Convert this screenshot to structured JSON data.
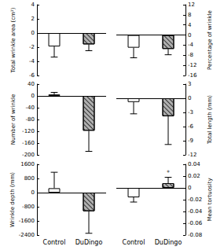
{
  "chart_data": [
    {
      "type": "bar",
      "y_label": "Total wrinkle area (cm²)",
      "categories": [
        "Control",
        "DuDingo"
      ],
      "values": [
        -1.9,
        -1.6
      ],
      "errors": [
        1.5,
        0.9
      ],
      "colors": [
        "#ffffff",
        "#b0b0b0"
      ],
      "ylim": [
        -6,
        4
      ],
      "yticks": [
        -6,
        -4,
        -2,
        0,
        2,
        4
      ],
      "tick_labels": "y"
    },
    {
      "type": "bar",
      "y_label": "Percentage of wrinkle",
      "categories": [
        "Control",
        "DuDingo"
      ],
      "values": [
        -5.0,
        -5.5
      ],
      "errors": [
        4.0,
        2.3
      ],
      "colors": [
        "#ffffff",
        "#b0b0b0"
      ],
      "ylim": [
        -16,
        12
      ],
      "yticks": [
        -16,
        -12,
        -8,
        -4,
        0,
        4,
        8,
        12
      ],
      "tick_labels": "y"
    },
    {
      "type": "bar",
      "y_label": "Number of wrinkle",
      "categories": [
        "Control",
        "DuDingo"
      ],
      "values": [
        5,
        -118
      ],
      "errors": [
        7,
        70
      ],
      "colors": [
        "#ffffff",
        "#b0b0b0"
      ],
      "ylim": [
        -200,
        40
      ],
      "yticks": [
        -200,
        -160,
        -120,
        -80,
        -40,
        0,
        40
      ],
      "tick_labels": "y"
    },
    {
      "type": "bar",
      "y_label": "Total length (mm)",
      "categories": [
        "Control",
        "DuDingo"
      ],
      "values": [
        -0.8,
        -3.8
      ],
      "errors": [
        2.5,
        6.0
      ],
      "colors": [
        "#ffffff",
        "#b0b0b0"
      ],
      "ylim": [
        -12,
        3
      ],
      "yticks": [
        -12,
        -9,
        -6,
        -3,
        0,
        3
      ],
      "tick_labels": "y"
    },
    {
      "type": "bar",
      "y_label": "Wrinkle depth (mm)",
      "categories": [
        "Control",
        "DuDingo"
      ],
      "values": [
        250,
        -1050
      ],
      "errors": [
        900,
        1250
      ],
      "colors": [
        "#ffffff",
        "#b0b0b0"
      ],
      "ylim": [
        -2400,
        1600
      ],
      "yticks": [
        -2400,
        -1600,
        -800,
        0,
        800,
        1600
      ]
    },
    {
      "type": "bar",
      "y_label": "Mean tortuosity",
      "categories": [
        "Control",
        "DuDingo"
      ],
      "values": [
        -0.016,
        0.008
      ],
      "errors": [
        0.008,
        0.01
      ],
      "colors": [
        "#ffffff",
        "#b0b0b0"
      ],
      "ylim": [
        -0.08,
        0.04
      ],
      "yticks": [
        -0.08,
        -0.06,
        -0.04,
        -0.02,
        0,
        0.02,
        0.04
      ],
      "annotations": [
        {
          "category": "DuDingo",
          "text": "*"
        }
      ]
    }
  ]
}
